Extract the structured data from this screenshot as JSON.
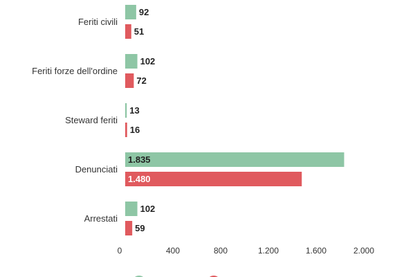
{
  "chart_data": {
    "type": "bar",
    "orientation": "horizontal",
    "categories": [
      "Feriti civili",
      "Feriti forze dell'ordine",
      "Steward feriti",
      "Denunciati",
      "Arrestati"
    ],
    "series": [
      {
        "name": "",
        "color": "#8ec6a5",
        "values": [
          92,
          102,
          13,
          1835,
          102
        ],
        "value_labels": [
          "92",
          "102",
          "13",
          "1.835",
          "102"
        ]
      },
      {
        "name": "",
        "color": "#e05a5e",
        "values": [
          51,
          72,
          16,
          1480,
          59
        ],
        "value_labels": [
          "51",
          "72",
          "16",
          "1.480",
          "59"
        ]
      }
    ],
    "xlim": [
      0,
      2000
    ],
    "xticks": [
      0,
      400,
      800,
      1200,
      1600,
      2000
    ],
    "xtick_labels": [
      "0",
      "400",
      "800",
      "1.200",
      "1.600",
      "2.000"
    ],
    "title": "",
    "xlabel": "",
    "ylabel": "",
    "legend_position": "bottom"
  }
}
